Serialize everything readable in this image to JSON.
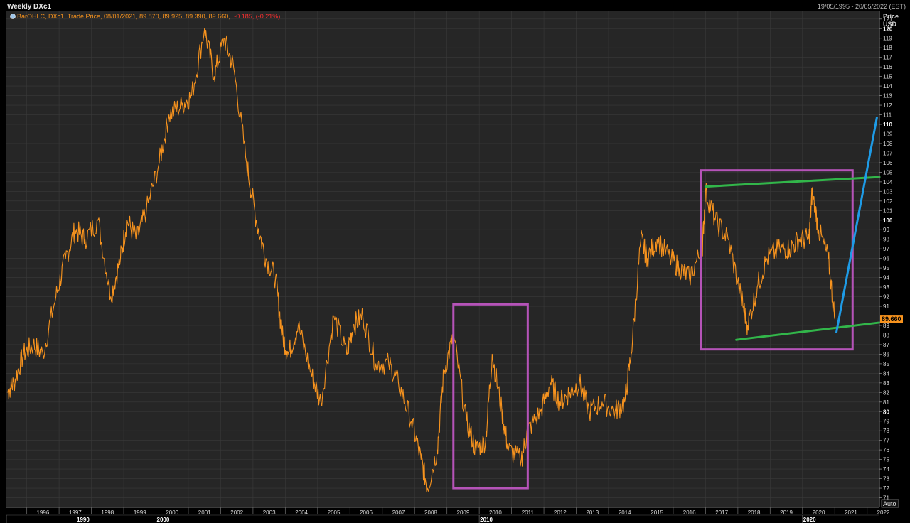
{
  "window": {
    "title": "Weekly DXc1",
    "date_range": "19/05/1995 - 20/05/2022 (EST)"
  },
  "legend": {
    "prefix": "BarOHLC, DXc1, Trade Price, 08/01/2021, 89.870, 89.925, 89.390, 89.660,",
    "change": "-0.185, (-0.21%)"
  },
  "price_axis": {
    "title": "Price",
    "unit": "USD",
    "last_price_label": "89.660",
    "auto_label": "Auto"
  },
  "colors": {
    "background": "#000000",
    "plot": "#262626",
    "grid": "#3a3a3a",
    "price_line": "#f7931e",
    "box": "#b553b8",
    "support_resistance": "#32b64a",
    "trend": "#1e9be6",
    "change_text": "#ff3030",
    "legend_text": "#f7931e",
    "axis_text": "#dcdcdc",
    "price_tag_bg": "#f7931e"
  },
  "chart_data": {
    "type": "line",
    "ylim": [
      70,
      122
    ],
    "xlim": [
      1995.37,
      2022.38
    ],
    "y_ticks": [
      71,
      72,
      73,
      74,
      75,
      76,
      77,
      78,
      79,
      80,
      81,
      82,
      83,
      84,
      85,
      86,
      87,
      88,
      89,
      91,
      92,
      93,
      94,
      95,
      96,
      97,
      98,
      99,
      100,
      101,
      102,
      103,
      104,
      105,
      106,
      107,
      108,
      109,
      110,
      111,
      112,
      113,
      114,
      115,
      116,
      117,
      118,
      119,
      120,
      121
    ],
    "y_major_ticks": [
      80,
      90,
      100,
      110,
      120
    ],
    "x_ticks": [
      "1996",
      "1997",
      "1998",
      "1999",
      "2000",
      "2001",
      "2002",
      "2003",
      "2004",
      "2005",
      "2006",
      "2007",
      "2008",
      "2009",
      "2010",
      "2011",
      "2012",
      "2013",
      "2014",
      "2015",
      "2016",
      "2017",
      "2018",
      "2019",
      "2020",
      "2021",
      "2022"
    ],
    "x_decades": [
      "1990",
      "2000",
      "2010",
      "2020"
    ],
    "series": [
      {
        "x": [
          1995.4,
          1995.6,
          1995.9,
          1996.2,
          1996.5,
          1996.9,
          1997.2,
          1997.5,
          1997.8,
          1998.2,
          1998.6,
          1998.9,
          1999.1,
          1999.4,
          1999.7,
          2000.1,
          2000.4,
          2000.8,
          2001.1,
          2001.5,
          2001.8,
          2002.1,
          2002.4,
          2002.8,
          2003.1,
          2003.4,
          2003.7,
          2003.9,
          2004.1,
          2004.4,
          2004.8,
          2005.1,
          2005.5,
          2005.9,
          2006.1,
          2006.4,
          2006.8,
          2007.2,
          2007.5,
          2007.9,
          2008.2,
          2008.4,
          2008.7,
          2008.9,
          2009.2,
          2009.6,
          2009.9,
          2010.2,
          2010.4,
          2010.7,
          2010.9,
          2011.3,
          2011.5,
          2011.9,
          2012.2,
          2012.5,
          2012.8,
          2013.1,
          2013.4,
          2013.8,
          2014.2,
          2014.5,
          2014.7,
          2015.0,
          2015.2,
          2015.5,
          2015.9,
          2016.2,
          2016.5,
          2016.9,
          2017.0,
          2017.3,
          2017.7,
          2018.1,
          2018.3,
          2018.6,
          2018.9,
          2019.3,
          2019.6,
          2019.9,
          2020.2,
          2020.3,
          2020.5,
          2020.8,
          2021.0
        ],
        "y": [
          82,
          83,
          86,
          87,
          86,
          92,
          96,
          99,
          98,
          100,
          92,
          96,
          100,
          98,
          101,
          106,
          111,
          112,
          113,
          120,
          115,
          119,
          116,
          106,
          100,
          96,
          94,
          88,
          86,
          89,
          84,
          81,
          90,
          86,
          89,
          90,
          85,
          85,
          83,
          79,
          75,
          72,
          76,
          84,
          88,
          79,
          76,
          77,
          86,
          80,
          76,
          75,
          78,
          80,
          83,
          81,
          82,
          83,
          80,
          81,
          80,
          81,
          86,
          98,
          96,
          98,
          96,
          95,
          94,
          97,
          103,
          100,
          98,
          92,
          89,
          93,
          96,
          97,
          97,
          98,
          98,
          103,
          99,
          96,
          89.66
        ]
      }
    ],
    "annotations": [
      {
        "type": "rectangle",
        "x": [
          2009.2,
          2011.5
        ],
        "y": [
          72,
          91.2
        ],
        "color": "purple"
      },
      {
        "type": "rectangle",
        "x": [
          2016.85,
          2021.55
        ],
        "y": [
          86.5,
          105.2
        ],
        "color": "purple"
      },
      {
        "type": "line",
        "x": [
          2017.0,
          2022.38
        ],
        "y": [
          103.5,
          104.5
        ],
        "color": "green"
      },
      {
        "type": "line",
        "x": [
          2017.95,
          2022.38
        ],
        "y": [
          87.5,
          89.3
        ],
        "color": "green"
      },
      {
        "type": "line",
        "x": [
          2021.05,
          2022.3
        ],
        "y": [
          88.3,
          110.7
        ],
        "color": "blue"
      }
    ]
  }
}
